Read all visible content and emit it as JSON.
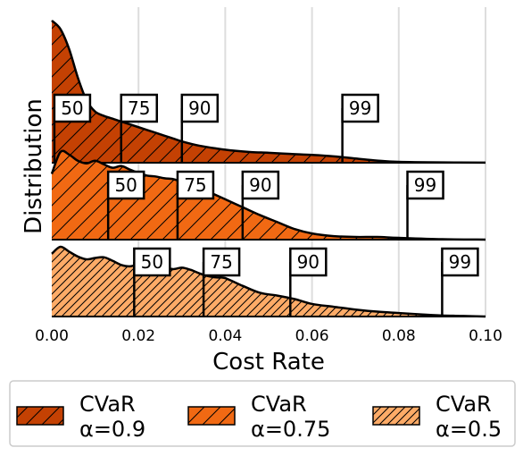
{
  "chart_data": {
    "type": "area",
    "xlabel": "Cost Rate",
    "ylabel": "Distribution",
    "xlim": [
      0.0,
      0.1
    ],
    "xticks": [
      "0.00",
      "0.02",
      "0.04",
      "0.06",
      "0.08",
      "0.10"
    ],
    "grid": "vertical",
    "legend_position": "bottom",
    "series": [
      {
        "name": [
          "CVaR",
          "α=0.9"
        ],
        "color": "#c44103",
        "hatch": "/",
        "x": [
          0,
          0.002,
          0.004,
          0.006,
          0.008,
          0.01,
          0.012,
          0.014,
          0.016,
          0.018,
          0.02,
          0.022,
          0.024,
          0.026,
          0.028,
          0.03,
          0.034,
          0.038,
          0.042,
          0.046,
          0.05,
          0.055,
          0.06,
          0.065,
          0.07,
          0.075,
          0.08,
          0.09,
          0.1
        ],
        "y": [
          1.0,
          0.94,
          0.8,
          0.6,
          0.44,
          0.36,
          0.33,
          0.31,
          0.29,
          0.27,
          0.25,
          0.23,
          0.21,
          0.19,
          0.17,
          0.15,
          0.12,
          0.1,
          0.085,
          0.075,
          0.07,
          0.062,
          0.055,
          0.045,
          0.03,
          0.015,
          0.006,
          0.002,
          0.001
        ],
        "percentiles": [
          {
            "label": "50",
            "x": 0.0006
          },
          {
            "label": "75",
            "x": 0.016
          },
          {
            "label": "90",
            "x": 0.03
          },
          {
            "label": "99",
            "x": 0.067
          }
        ]
      },
      {
        "name": [
          "CVaR",
          "α=0.75"
        ],
        "color": "#f16913",
        "hatch": "/",
        "x": [
          0,
          0.002,
          0.004,
          0.006,
          0.008,
          0.01,
          0.012,
          0.014,
          0.016,
          0.018,
          0.02,
          0.022,
          0.024,
          0.026,
          0.028,
          0.03,
          0.033,
          0.036,
          0.04,
          0.044,
          0.048,
          0.052,
          0.056,
          0.06,
          0.065,
          0.07,
          0.075,
          0.08,
          0.09,
          0.1
        ],
        "y": [
          0.75,
          1.0,
          0.97,
          0.9,
          0.87,
          0.9,
          0.86,
          0.82,
          0.84,
          0.8,
          0.76,
          0.73,
          0.72,
          0.7,
          0.69,
          0.66,
          0.62,
          0.55,
          0.46,
          0.37,
          0.28,
          0.2,
          0.12,
          0.07,
          0.04,
          0.03,
          0.03,
          0.02,
          0.005,
          0.0
        ],
        "percentiles": [
          {
            "label": "50",
            "x": 0.013
          },
          {
            "label": "75",
            "x": 0.029
          },
          {
            "label": "90",
            "x": 0.044
          },
          {
            "label": "99",
            "x": 0.082
          }
        ]
      },
      {
        "name": [
          "CVaR",
          "α=0.5"
        ],
        "color": "#fdab67",
        "hatch": "//",
        "x": [
          0,
          0.002,
          0.004,
          0.006,
          0.008,
          0.01,
          0.012,
          0.014,
          0.016,
          0.018,
          0.02,
          0.022,
          0.024,
          0.026,
          0.028,
          0.03,
          0.032,
          0.034,
          0.036,
          0.038,
          0.04,
          0.044,
          0.048,
          0.052,
          0.056,
          0.06,
          0.065,
          0.07,
          0.075,
          0.08,
          0.085,
          0.09,
          0.095,
          0.1
        ],
        "y": [
          0.9,
          1.0,
          0.93,
          0.86,
          0.82,
          0.84,
          0.85,
          0.8,
          0.74,
          0.72,
          0.75,
          0.78,
          0.74,
          0.7,
          0.68,
          0.7,
          0.67,
          0.62,
          0.58,
          0.56,
          0.55,
          0.44,
          0.34,
          0.3,
          0.25,
          0.18,
          0.14,
          0.1,
          0.07,
          0.05,
          0.03,
          0.015,
          0.008,
          0.0
        ],
        "percentiles": [
          {
            "label": "50",
            "x": 0.019
          },
          {
            "label": "75",
            "x": 0.035
          },
          {
            "label": "90",
            "x": 0.055
          },
          {
            "label": "99",
            "x": 0.09
          }
        ]
      }
    ]
  }
}
